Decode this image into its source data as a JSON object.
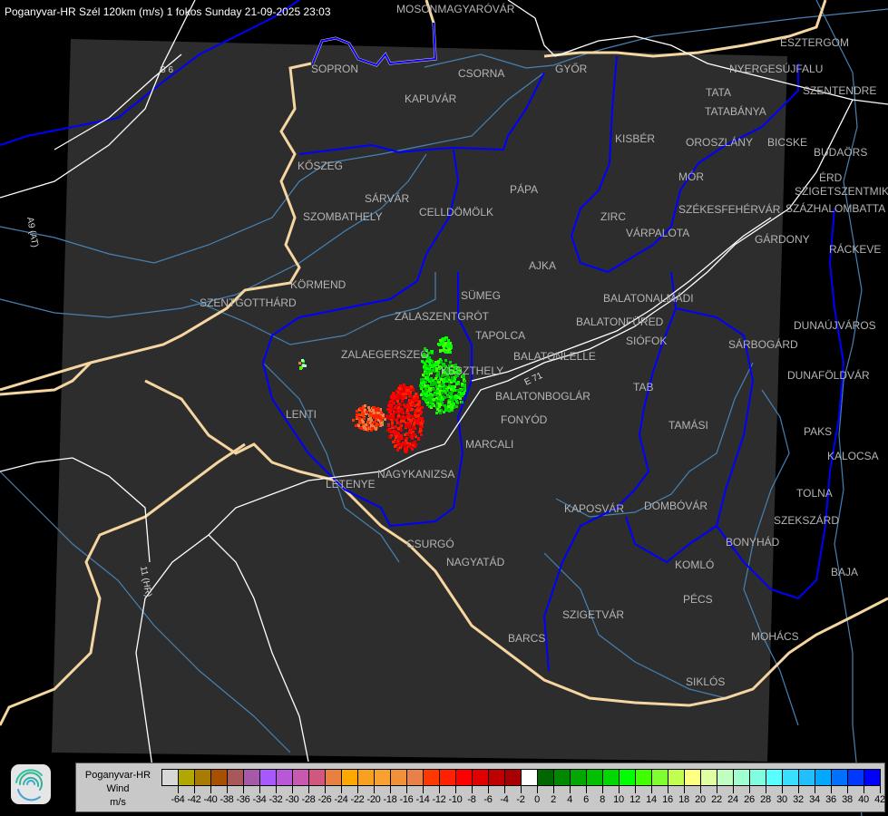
{
  "header": {
    "title": "Poganyvar-HR Szél 120km (m/s) 1 fokos Sunday 21-09-2025 23:03"
  },
  "map": {
    "background_color": "#000000",
    "radar_coverage_color": "#2d2d2d",
    "cities": [
      "MOSONMAGYARÓVÁR",
      "SOPRON",
      "KAPUVÁR",
      "CSORNA",
      "GYŐR",
      "KŐSZEG",
      "SZOMBATHELY",
      "SÁRVÁR",
      "CELLDÖMÖLK",
      "PÁPA",
      "KISBÉR",
      "TATA",
      "TATABÁNYA",
      "OROSZLÁNY",
      "BICSKE",
      "MÓR",
      "ZIRC",
      "VÁRPALOTA",
      "SZÉKESFEHÉRVÁR",
      "GÁRDONY",
      "ESZTERGOM",
      "NYERGESÚJFALU",
      "SZENTENDRE",
      "BUDAÖRS",
      "ÉRD",
      "SZIGETSZENTMIKLÓS",
      "SZÁZHALOMBATTA",
      "RÁCKEVE",
      "KÖRMEND",
      "SZENTGOTTHÁRD",
      "ZALASZENTGRÓT",
      "SÜMEG",
      "TAPOLCA",
      "AJKA",
      "BALATONALMÁDI",
      "BALATONFÜRED",
      "SIÓFOK",
      "ZALAEGERSZEG",
      "KESZTHELY",
      "BALATONLELLE",
      "BALATONBOGLÁR",
      "FONYÓD",
      "LENTI",
      "MARCALI",
      "NAGYKANIZSA",
      "LETENYE",
      "TAB",
      "TAMÁSI",
      "DUNAÚJVÁROS",
      "SÁRBOGÁRD",
      "DUNAFÖLDVÁR",
      "PAKS",
      "KALOCSA",
      "TOLNA",
      "SZEKSZÁRD",
      "BONYHÁD",
      "DOMBÓVÁR",
      "KAPOSVÁR",
      "CSURGÓ",
      "NAGYATÁD",
      "KOMLÓ",
      "PÉCS",
      "SZIGETVÁR",
      "MOHÁCS",
      "BAJA",
      "BARCS",
      "SIKLÓS"
    ],
    "road_labels": [
      "S 6",
      "A9 (AT)",
      "11 (HR)",
      "E 71"
    ],
    "colors": {
      "country_border": "#f5d5a0",
      "county_border": "#0000ff",
      "river": "#4682b4",
      "road": "#ffffff",
      "city": "#b4b4b4"
    }
  },
  "legend": {
    "station": "Poganyvar-HR",
    "quantity": "Wind",
    "unit": "m/s",
    "colors": [
      "#d8d8d8",
      "#b0a800",
      "#a87c00",
      "#a85000",
      "#a85858",
      "#a858a8",
      "#a858ff",
      "#b858d8",
      "#c858b0",
      "#d05880",
      "#e88040",
      "#ffa800",
      "#f8a020",
      "#f8a030",
      "#f09038",
      "#e88048",
      "#ff3800",
      "#ff2000",
      "#ff0000",
      "#e00000",
      "#c00000",
      "#a80000",
      "#ffffff",
      "#006800",
      "#008800",
      "#00a800",
      "#00c000",
      "#00d800",
      "#00ff00",
      "#40ff00",
      "#80ff30",
      "#c0ff50",
      "#ffff80",
      "#e0ffa0",
      "#c0ffc0",
      "#a0ffd0",
      "#80ffe0",
      "#58ffff",
      "#38e0ff",
      "#20c0ff",
      "#00a8ff",
      "#0070ff",
      "#0038ff",
      "#0000ff"
    ],
    "ticks": [
      "-64",
      "-42",
      "-40",
      "-38",
      "-36",
      "-34",
      "-32",
      "-30",
      "-28",
      "-26",
      "-24",
      "-22",
      "-20",
      "-18",
      "-16",
      "-14",
      "-12",
      "-10",
      "-8",
      "-6",
      "-4",
      "-2",
      "0",
      "2",
      "4",
      "6",
      "8",
      "10",
      "12",
      "14",
      "16",
      "18",
      "20",
      "22",
      "24",
      "26",
      "28",
      "30",
      "32",
      "34",
      "36",
      "38",
      "40",
      "42"
    ]
  }
}
